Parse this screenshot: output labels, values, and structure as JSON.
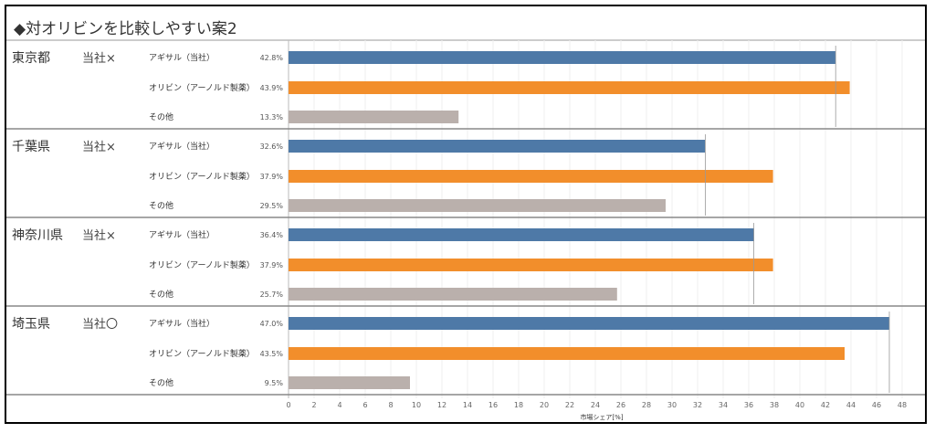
{
  "title": "◆対オリビンを比較しやすい案2",
  "chart_data": {
    "type": "bar",
    "orientation": "horizontal",
    "xlabel": "市場シェア[%]",
    "xlim": [
      0,
      49
    ],
    "xticks": [
      0,
      2,
      4,
      6,
      8,
      10,
      12,
      14,
      16,
      18,
      20,
      22,
      24,
      26,
      28,
      30,
      32,
      34,
      36,
      38,
      40,
      42,
      44,
      46,
      48
    ],
    "grid": true,
    "colors": {
      "アギサル（当社）": "#4e79a7",
      "オリビン（アーノルド製薬）": "#f28e2b",
      "その他": "#bab0ac"
    },
    "groups": [
      {
        "prefecture": "東京都",
        "status": "当社×",
        "bars": [
          {
            "brand": "アギサル（当社）",
            "value": 42.8,
            "label": "42.8%"
          },
          {
            "brand": "オリビン（アーノルド製薬）",
            "value": 43.9,
            "label": "43.9%"
          },
          {
            "brand": "その他",
            "value": 13.3,
            "label": "13.3%"
          }
        ]
      },
      {
        "prefecture": "千葉県",
        "status": "当社×",
        "bars": [
          {
            "brand": "アギサル（当社）",
            "value": 32.6,
            "label": "32.6%"
          },
          {
            "brand": "オリビン（アーノルド製薬）",
            "value": 37.9,
            "label": "37.9%"
          },
          {
            "brand": "その他",
            "value": 29.5,
            "label": "29.5%"
          }
        ]
      },
      {
        "prefecture": "神奈川県",
        "status": "当社×",
        "bars": [
          {
            "brand": "アギサル（当社）",
            "value": 36.4,
            "label": "36.4%"
          },
          {
            "brand": "オリビン（アーノルド製薬）",
            "value": 37.9,
            "label": "37.9%"
          },
          {
            "brand": "その他",
            "value": 25.7,
            "label": "25.7%"
          }
        ]
      },
      {
        "prefecture": "埼玉県",
        "status": "当社〇",
        "bars": [
          {
            "brand": "アギサル（当社）",
            "value": 47.0,
            "label": "47.0%"
          },
          {
            "brand": "オリビン（アーノルド製薬）",
            "value": 43.5,
            "label": "43.5%"
          },
          {
            "brand": "その他",
            "value": 9.5,
            "label": "9.5%"
          }
        ]
      }
    ]
  }
}
